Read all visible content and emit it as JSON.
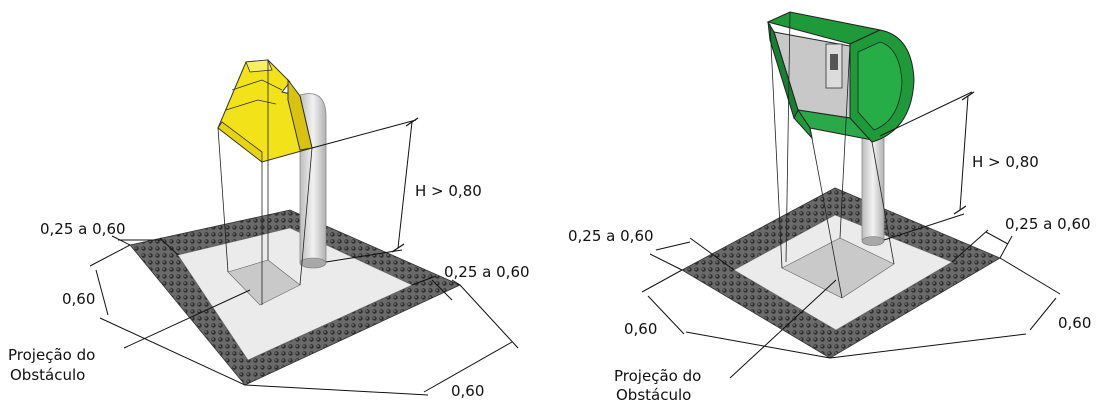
{
  "figures": [
    {
      "id": "left",
      "obstacle": "yellow-phone-hood",
      "labels": {
        "height": "H > 0,80",
        "band_top_left": "0,25 a 0,60",
        "band_left": "0,60",
        "band_right": "0,25 a 0,60",
        "band_bottom": "0,60",
        "projection_line1": "Projeção do",
        "projection_line2": "Obstáculo"
      }
    },
    {
      "id": "right",
      "obstacle": "green-phone-booth",
      "labels": {
        "height": "H > 0,80",
        "band_left_top": "0,25 a 0,60",
        "band_left": "0,60",
        "band_right_top": "0,25 a 0,60",
        "band_right": "0,60",
        "projection_line1": "Projeção do",
        "projection_line2": "Obstáculo"
      }
    }
  ],
  "colors": {
    "tactile_floor": "#5a5a5a",
    "yellow_obstacle": "#f2e21a",
    "green_obstacle": "#1f9a3a",
    "pole": "#d9d9d9",
    "projection": "#c8c8c8"
  }
}
